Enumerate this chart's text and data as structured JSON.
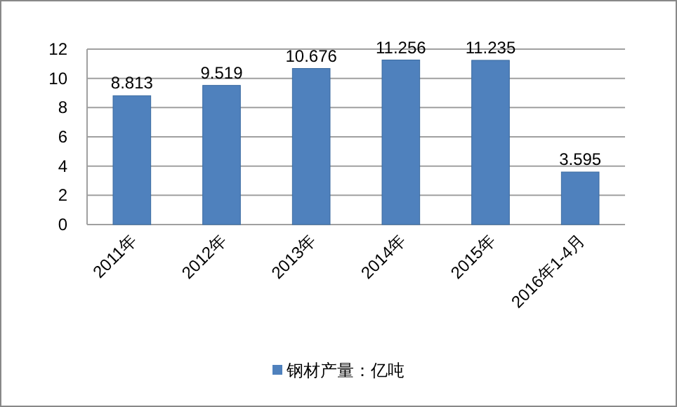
{
  "chart_data": {
    "type": "bar",
    "categories": [
      "2011年",
      "2012年",
      "2013年",
      "2014年",
      "2015年",
      "2016年1-4月"
    ],
    "series": [
      {
        "name": "钢材产量：亿吨",
        "color": "#4f81bd",
        "values": [
          8.813,
          9.519,
          10.676,
          11.256,
          11.235,
          3.595
        ]
      }
    ],
    "ylim": [
      0,
      12
    ],
    "yticks": [
      0,
      2,
      4,
      6,
      8,
      10,
      12
    ],
    "grid": "y",
    "data_labels": true,
    "legend": "bottom"
  }
}
